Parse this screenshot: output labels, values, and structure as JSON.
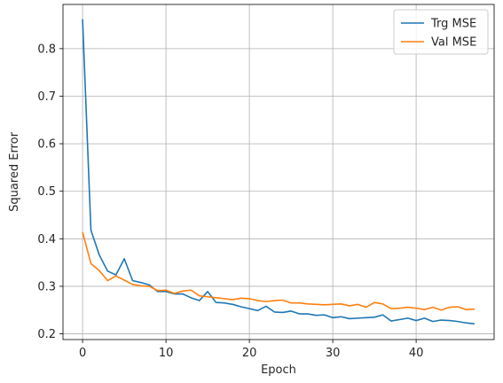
{
  "chart_data": {
    "type": "line",
    "title": "",
    "xlabel": "Epoch",
    "ylabel": "Squared Error",
    "xlim": [
      -2.35,
      49.35
    ],
    "ylim": [
      0.188,
      0.893
    ],
    "xticks": [
      0,
      10,
      20,
      30,
      40
    ],
    "yticks": [
      0.2,
      0.3,
      0.4,
      0.5,
      0.6,
      0.7,
      0.8
    ],
    "grid": true,
    "legend_position": "top-right",
    "x": [
      0,
      1,
      2,
      3,
      4,
      5,
      6,
      7,
      8,
      9,
      10,
      11,
      12,
      13,
      14,
      15,
      16,
      17,
      18,
      19,
      20,
      21,
      22,
      23,
      24,
      25,
      26,
      27,
      28,
      29,
      30,
      31,
      32,
      33,
      34,
      35,
      36,
      37,
      38,
      39,
      40,
      41,
      42,
      43,
      44,
      45,
      46,
      47
    ],
    "series": [
      {
        "name": "Trg MSE",
        "color": "#1f77b4",
        "values": [
          0.862,
          0.418,
          0.366,
          0.332,
          0.324,
          0.358,
          0.312,
          0.308,
          0.303,
          0.289,
          0.289,
          0.284,
          0.284,
          0.276,
          0.27,
          0.289,
          0.266,
          0.265,
          0.262,
          0.257,
          0.253,
          0.249,
          0.258,
          0.246,
          0.245,
          0.248,
          0.242,
          0.242,
          0.239,
          0.24,
          0.234,
          0.236,
          0.232,
          0.233,
          0.234,
          0.235,
          0.24,
          0.227,
          0.23,
          0.233,
          0.228,
          0.233,
          0.226,
          0.229,
          0.228,
          0.226,
          0.223,
          0.221
        ]
      },
      {
        "name": "Val MSE",
        "color": "#ff7f0e",
        "values": [
          0.414,
          0.348,
          0.333,
          0.312,
          0.322,
          0.313,
          0.304,
          0.301,
          0.3,
          0.291,
          0.292,
          0.285,
          0.29,
          0.292,
          0.28,
          0.278,
          0.276,
          0.274,
          0.272,
          0.275,
          0.274,
          0.27,
          0.268,
          0.27,
          0.271,
          0.265,
          0.265,
          0.263,
          0.262,
          0.261,
          0.262,
          0.263,
          0.259,
          0.262,
          0.256,
          0.266,
          0.263,
          0.253,
          0.254,
          0.256,
          0.254,
          0.251,
          0.256,
          0.25,
          0.256,
          0.257,
          0.251,
          0.252
        ]
      }
    ]
  }
}
